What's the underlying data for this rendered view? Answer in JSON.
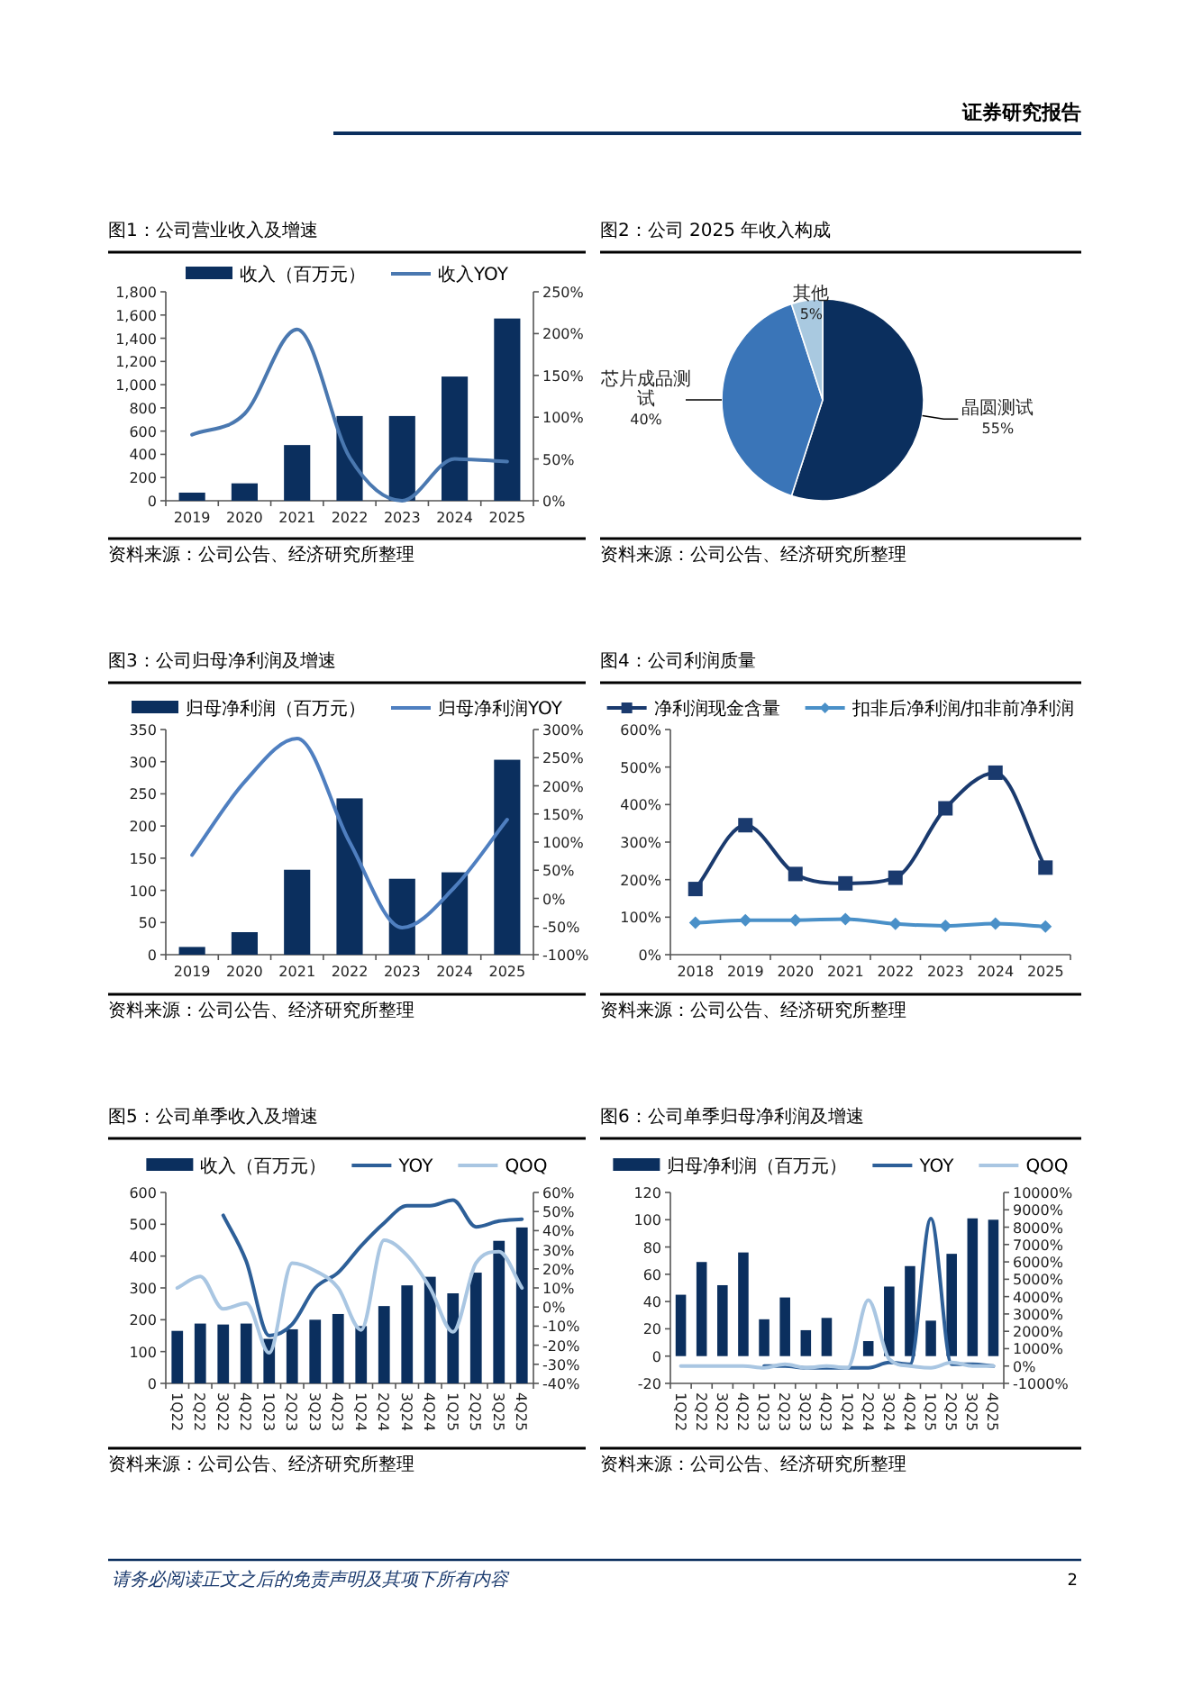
{
  "chart_data": [
    {
      "type": "other",
      "annotations": [
        "证券研究报告"
      ]
    },
    {
      "type": "bar",
      "title": "图1：公司营业收入及增速",
      "categories": [
        "2019",
        "2020",
        "2021",
        "2022",
        "2023",
        "2024",
        "2025"
      ],
      "series": [
        {
          "name": "收入（百万元）",
          "color": "#0b2f5e",
          "values": [
            70,
            150,
            480,
            730,
            730,
            1070,
            1570
          ]
        },
        {
          "name": "收入YOY",
          "type": "line",
          "axis": "y2",
          "color": "#4a78b0",
          "values": [
            79,
            104,
            205,
            52,
            0,
            50,
            47
          ]
        }
      ],
      "ylim": [
        0,
        1800
      ],
      "yticks": [
        0,
        200,
        400,
        600,
        800,
        {
          "value": 1000,
          "label": "1,000"
        },
        {
          "value": 1200,
          "label": "1,200"
        },
        {
          "value": 1400,
          "label": "1,400"
        },
        {
          "value": 1600,
          "label": "1,600"
        },
        {
          "value": 1800,
          "label": "1,800"
        }
      ],
      "y2lim": [
        0,
        250
      ],
      "y2ticks": [
        {
          "value": 0,
          "label": "0%"
        },
        {
          "value": 50,
          "label": "50%"
        },
        {
          "value": 100,
          "label": "100%"
        },
        {
          "value": 150,
          "label": "150%"
        },
        {
          "value": 200,
          "label": "200%"
        },
        {
          "value": 250,
          "label": "250%"
        }
      ],
      "legend": "top",
      "annotations": [
        "资料来源：公司公告、经济研究所整理"
      ]
    },
    {
      "type": "pie",
      "title": "图2：公司 2025 年收入构成",
      "categories": [
        "晶圆测试",
        "芯片成品测试",
        "其他"
      ],
      "values": [
        55,
        40,
        5
      ],
      "colors": [
        "#0b2f5e",
        "#3a75b8",
        "#a9c9e0"
      ],
      "value_labels": [
        "55%",
        "40%",
        "5%"
      ],
      "annotations": [
        "资料来源：公司公告、经济研究所整理"
      ]
    },
    {
      "type": "bar",
      "title": "图3：公司归母净利润及增速",
      "categories": [
        "2019",
        "2020",
        "2021",
        "2022",
        "2023",
        "2024",
        "2025"
      ],
      "series": [
        {
          "name": "归母净利润（百万元）",
          "color": "#0b2f5e",
          "values": [
            12,
            35,
            132,
            243,
            118,
            128,
            303
          ]
        },
        {
          "name": "归母净利润YOY",
          "type": "line",
          "axis": "y2",
          "color": "#4f7fc0",
          "values": [
            77,
            207,
            284,
            100,
            -52,
            20,
            140
          ]
        }
      ],
      "ylim": [
        0,
        350
      ],
      "yticks": [
        0,
        50,
        100,
        150,
        200,
        250,
        300,
        350
      ],
      "y2lim": [
        -100,
        300
      ],
      "y2ticks": [
        {
          "value": -100,
          "label": "-100%"
        },
        {
          "value": -50,
          "label": "-50%"
        },
        {
          "value": 0,
          "label": "0%"
        },
        {
          "value": 50,
          "label": "50%"
        },
        {
          "value": 100,
          "label": "100%"
        },
        {
          "value": 150,
          "label": "150%"
        },
        {
          "value": 200,
          "label": "200%"
        },
        {
          "value": 250,
          "label": "250%"
        },
        {
          "value": 300,
          "label": "300%"
        }
      ],
      "legend": "top",
      "annotations": [
        "资料来源：公司公告、经济研究所整理"
      ]
    },
    {
      "type": "line",
      "title": "图4：公司利润质量",
      "categories": [
        "2018",
        "2019",
        "2020",
        "2021",
        "2022",
        "2023",
        "2024",
        "2025"
      ],
      "series": [
        {
          "name": "净利润现金含量",
          "color": "#1a3a6e",
          "marker": "square",
          "values": [
            175,
            345,
            215,
            190,
            205,
            390,
            485,
            232
          ]
        },
        {
          "name": "扣非后净利润/扣非前净利润",
          "color": "#4a90c8",
          "marker": "diamond",
          "values": [
            85,
            92,
            92,
            95,
            82,
            77,
            83,
            75
          ]
        }
      ],
      "ylim": [
        0,
        600
      ],
      "yticks": [
        {
          "value": 0,
          "label": "0%"
        },
        {
          "value": 100,
          "label": "100%"
        },
        {
          "value": 200,
          "label": "200%"
        },
        {
          "value": 300,
          "label": "300%"
        },
        {
          "value": 400,
          "label": "400%"
        },
        {
          "value": 500,
          "label": "500%"
        },
        {
          "value": 600,
          "label": "600%"
        }
      ],
      "legend": "top",
      "annotations": [
        "资料来源：公司公告、经济研究所整理"
      ]
    },
    {
      "type": "bar",
      "title": "图5：公司单季收入及增速",
      "categories": [
        "1Q22",
        "2Q22",
        "3Q22",
        "4Q22",
        "1Q23",
        "2Q23",
        "3Q23",
        "4Q23",
        "1Q24",
        "2Q24",
        "3Q24",
        "4Q24",
        "1Q25",
        "2Q25",
        "3Q25",
        "4Q25"
      ],
      "series": [
        {
          "name": "收入（百万元）",
          "color": "#0b2f5e",
          "values": [
            165,
            188,
            185,
            188,
            140,
            170,
            200,
            218,
            180,
            243,
            308,
            335,
            283,
            348,
            448,
            490
          ]
        },
        {
          "name": "YOY",
          "type": "line",
          "axis": "y2",
          "color": "#2d5f98",
          "values": [
            null,
            null,
            48,
            24,
            -15,
            -9,
            10,
            18,
            32,
            44,
            53,
            53,
            56,
            42,
            45,
            46
          ]
        },
        {
          "name": "QOQ",
          "type": "line",
          "axis": "y2",
          "color": "#a9c6e2",
          "values": [
            10,
            16,
            -1,
            2,
            -24,
            23,
            19,
            10,
            -12,
            35,
            27,
            10,
            -13,
            23,
            29,
            10
          ]
        }
      ],
      "ylim": [
        0,
        600
      ],
      "yticks": [
        0,
        100,
        200,
        300,
        400,
        500,
        600
      ],
      "y2lim": [
        -40,
        60
      ],
      "y2ticks": [
        {
          "value": -40,
          "label": "-40%"
        },
        {
          "value": -30,
          "label": "-30%"
        },
        {
          "value": -20,
          "label": "-20%"
        },
        {
          "value": -10,
          "label": "-10%"
        },
        {
          "value": 0,
          "label": "0%"
        },
        {
          "value": 10,
          "label": "10%"
        },
        {
          "value": 20,
          "label": "20%"
        },
        {
          "value": 30,
          "label": "30%"
        },
        {
          "value": 40,
          "label": "40%"
        },
        {
          "value": 50,
          "label": "50%"
        },
        {
          "value": 60,
          "label": "60%"
        }
      ],
      "legend": "top",
      "annotations": [
        "资料来源：公司公告、经济研究所整理"
      ]
    },
    {
      "type": "bar",
      "title": "图6：公司单季归母净利润及增速",
      "categories": [
        "1Q22",
        "2Q22",
        "3Q22",
        "4Q22",
        "1Q23",
        "2Q23",
        "3Q23",
        "4Q23",
        "1Q24",
        "2Q24",
        "3Q24",
        "4Q24",
        "1Q25",
        "2Q25",
        "3Q25",
        "4Q25"
      ],
      "series": [
        {
          "name": "归母净利润（百万元）",
          "color": "#0b2f5e",
          "values": [
            45,
            69,
            52,
            76,
            27,
            43,
            19,
            28,
            0,
            11,
            51,
            66,
            26,
            75,
            101,
            100
          ]
        },
        {
          "name": "YOY",
          "type": "line",
          "axis": "y2",
          "color": "#2d5f98",
          "values": [
            null,
            null,
            null,
            null,
            0,
            0,
            -100,
            -100,
            -100,
            -100,
            200,
            100,
            8500,
            100,
            100,
            0
          ]
        },
        {
          "name": "QOQ",
          "type": "line",
          "axis": "y2",
          "color": "#a9c6e2",
          "values": [
            0,
            0,
            0,
            0,
            -100,
            100,
            -100,
            0,
            -100,
            3800,
            400,
            0,
            -100,
            200,
            0,
            0
          ]
        }
      ],
      "ylim": [
        -20,
        120
      ],
      "yticks": [
        -20,
        0,
        20,
        40,
        60,
        80,
        100,
        120
      ],
      "y2lim": [
        -1000,
        10000
      ],
      "y2ticks": [
        {
          "value": -1000,
          "label": "-1000%"
        },
        {
          "value": 0,
          "label": "0%"
        },
        {
          "value": 1000,
          "label": "1000%"
        },
        {
          "value": 2000,
          "label": "2000%"
        },
        {
          "value": 3000,
          "label": "3000%"
        },
        {
          "value": 4000,
          "label": "4000%"
        },
        {
          "value": 5000,
          "label": "5000%"
        },
        {
          "value": 6000,
          "label": "6000%"
        },
        {
          "value": 7000,
          "label": "7000%"
        },
        {
          "value": 8000,
          "label": "8000%"
        },
        {
          "value": 9000,
          "label": "9000%"
        },
        {
          "value": 10000,
          "label": "10000%"
        }
      ],
      "legend": "top",
      "annotations": [
        "资料来源：公司公告、经济研究所整理"
      ]
    },
    {
      "type": "other",
      "annotations": [
        "请务必阅读正文之后的免责声明及其项下所有内容",
        "2"
      ]
    }
  ]
}
